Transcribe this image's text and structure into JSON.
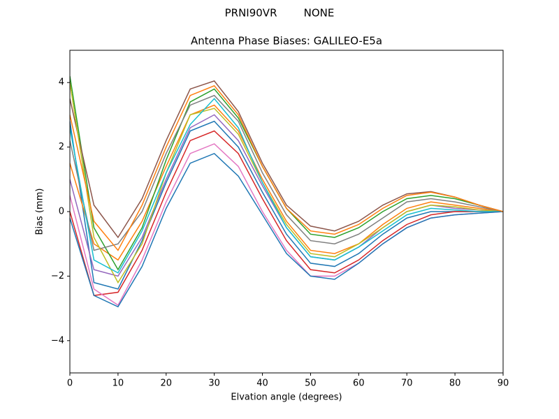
{
  "chart_data": {
    "type": "line",
    "suptitle": "PRNI90VR        NONE",
    "title": "Antenna Phase Biases: GALILEO-E5a",
    "xlabel": "Elvation angle (degrees)",
    "ylabel": "Bias (mm)",
    "x": [
      0,
      5,
      10,
      15,
      20,
      25,
      30,
      35,
      40,
      45,
      50,
      55,
      60,
      65,
      70,
      75,
      80,
      85,
      90
    ],
    "xlim": [
      0,
      90
    ],
    "xticks": [
      0,
      10,
      20,
      30,
      40,
      50,
      60,
      70,
      80,
      90
    ],
    "ylim": [
      -5,
      5
    ],
    "yticks": [
      {
        "value": -4,
        "label": "−4"
      },
      {
        "value": -2,
        "label": "−2"
      },
      0,
      2,
      4
    ],
    "series": [
      {
        "color": "#1f77b4",
        "values": [
          2.8,
          -2.2,
          -2.4,
          -0.9,
          0.9,
          2.5,
          2.8,
          2.0,
          0.6,
          -0.7,
          -1.6,
          -1.7,
          -1.3,
          -0.7,
          -0.2,
          0.0,
          0.0,
          0.0,
          0
        ]
      },
      {
        "color": "#ff7f0e",
        "values": [
          1.5,
          -1.0,
          -1.5,
          -0.3,
          1.4,
          3.0,
          3.3,
          2.5,
          1.0,
          -0.3,
          -1.2,
          -1.3,
          -1.0,
          -0.4,
          0.1,
          0.3,
          0.2,
          0.1,
          0
        ]
      },
      {
        "color": "#2ca02c",
        "values": [
          4.2,
          -0.5,
          -1.8,
          -0.5,
          1.6,
          3.4,
          3.8,
          2.9,
          1.4,
          0.1,
          -0.7,
          -0.8,
          -0.5,
          0.0,
          0.4,
          0.5,
          0.4,
          0.2,
          0
        ]
      },
      {
        "color": "#d62728",
        "values": [
          0.0,
          -2.6,
          -2.5,
          -1.2,
          0.6,
          2.2,
          2.5,
          1.8,
          0.4,
          -0.9,
          -1.8,
          -1.9,
          -1.5,
          -0.9,
          -0.4,
          -0.1,
          0.0,
          0.0,
          0
        ]
      },
      {
        "color": "#9467bd",
        "values": [
          1.0,
          -1.8,
          -2.0,
          -0.8,
          1.0,
          2.6,
          3.0,
          2.2,
          0.8,
          -0.5,
          -1.4,
          -1.5,
          -1.1,
          -0.5,
          0.0,
          0.2,
          0.1,
          0.05,
          0
        ]
      },
      {
        "color": "#8c564b",
        "values": [
          3.5,
          0.2,
          -0.8,
          0.4,
          2.2,
          3.8,
          4.05,
          3.1,
          1.5,
          0.2,
          -0.45,
          -0.6,
          -0.3,
          0.2,
          0.55,
          0.62,
          0.45,
          0.2,
          0
        ]
      },
      {
        "color": "#e377c2",
        "values": [
          0.5,
          -2.4,
          -2.9,
          -1.5,
          0.3,
          1.8,
          2.1,
          1.4,
          0.0,
          -1.2,
          -2.0,
          -2.0,
          -1.6,
          -1.0,
          -0.5,
          -0.2,
          -0.1,
          -0.05,
          0
        ]
      },
      {
        "color": "#7f7f7f",
        "values": [
          2.2,
          -1.2,
          -1.0,
          0.0,
          1.8,
          3.3,
          3.6,
          2.8,
          1.2,
          -0.1,
          -0.9,
          -1.0,
          -0.7,
          -0.2,
          0.3,
          0.4,
          0.3,
          0.15,
          0
        ]
      },
      {
        "color": "#bcbd22",
        "values": [
          4.0,
          -0.8,
          -2.2,
          -1.0,
          1.2,
          3.0,
          3.2,
          2.4,
          0.9,
          -0.4,
          -1.3,
          -1.4,
          -1.0,
          -0.5,
          0.0,
          0.2,
          0.15,
          0.05,
          0
        ]
      },
      {
        "color": "#17becf",
        "values": [
          2.6,
          -1.5,
          -1.9,
          -0.6,
          1.2,
          2.7,
          3.5,
          2.6,
          0.9,
          -0.5,
          -1.4,
          -1.5,
          -1.1,
          -0.6,
          -0.1,
          0.1,
          0.05,
          0.0,
          0
        ]
      },
      {
        "color": "#1f77b4",
        "values": [
          -0.2,
          -2.6,
          -2.95,
          -1.7,
          0.1,
          1.5,
          1.8,
          1.1,
          -0.1,
          -1.3,
          -2.0,
          -2.1,
          -1.6,
          -1.0,
          -0.5,
          -0.2,
          -0.1,
          -0.05,
          0
        ]
      },
      {
        "color": "#ff7f0e",
        "values": [
          3.0,
          -0.3,
          -1.2,
          0.2,
          2.0,
          3.6,
          3.9,
          3.0,
          1.4,
          0.1,
          -0.6,
          -0.7,
          -0.4,
          0.1,
          0.5,
          0.6,
          0.45,
          0.2,
          0
        ]
      }
    ]
  }
}
